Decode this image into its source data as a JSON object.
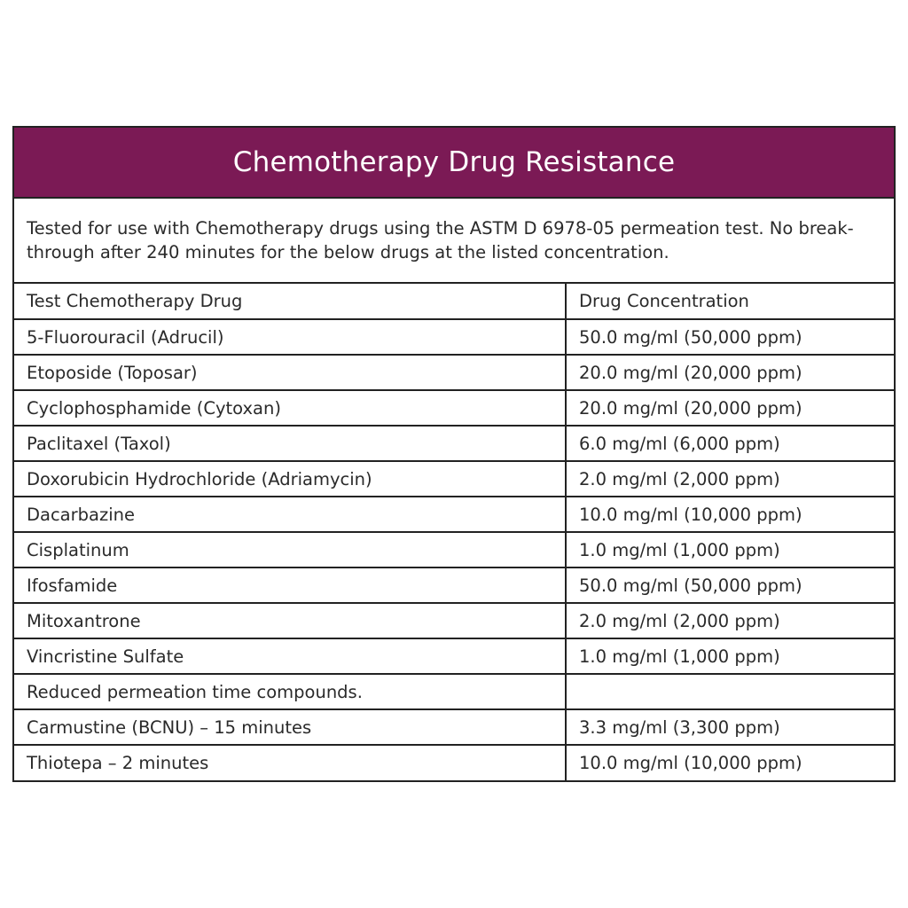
{
  "header": {
    "title": "Chemotherapy Drug Resistance"
  },
  "intro": {
    "text": "Tested for use with Chemotherapy drugs using the ASTM D 6978-05 permeation test. No break-through after 240 minutes for the below drugs at the listed concentration."
  },
  "colors": {
    "banner": "#7b1a55",
    "border": "#222222",
    "text": "#2a2a2a"
  },
  "table": {
    "headers": [
      "Test Chemotherapy Drug",
      "Drug Concentration"
    ],
    "rows": [
      {
        "drug": "5-Fluorouracil (Adrucil)",
        "concentration": "50.0 mg/ml (50,000 ppm)"
      },
      {
        "drug": "Etoposide (Toposar)",
        "concentration": "20.0 mg/ml (20,000 ppm)"
      },
      {
        "drug": "Cyclophosphamide (Cytoxan)",
        "concentration": "20.0 mg/ml (20,000 ppm)"
      },
      {
        "drug": "Paclitaxel (Taxol)",
        "concentration": "6.0 mg/ml (6,000 ppm)"
      },
      {
        "drug": "Doxorubicin Hydrochloride (Adriamycin)",
        "concentration": "2.0 mg/ml (2,000 ppm)"
      },
      {
        "drug": "Dacarbazine",
        "concentration": "10.0 mg/ml (10,000 ppm)"
      },
      {
        "drug": "Cisplatinum",
        "concentration": "1.0 mg/ml (1,000 ppm)"
      },
      {
        "drug": "Ifosfamide",
        "concentration": "50.0 mg/ml (50,000 ppm)"
      },
      {
        "drug": "Mitoxantrone",
        "concentration": "2.0 mg/ml (2,000 ppm)"
      },
      {
        "drug": "Vincristine Sulfate",
        "concentration": "1.0 mg/ml (1,000 ppm)"
      },
      {
        "drug": "Reduced permeation time compounds.",
        "concentration": ""
      },
      {
        "drug": "Carmustine (BCNU) – 15 minutes",
        "concentration": "3.3 mg/ml (3,300 ppm)"
      },
      {
        "drug": "Thiotepa – 2 minutes",
        "concentration": "10.0 mg/ml (10,000 ppm)"
      }
    ]
  }
}
